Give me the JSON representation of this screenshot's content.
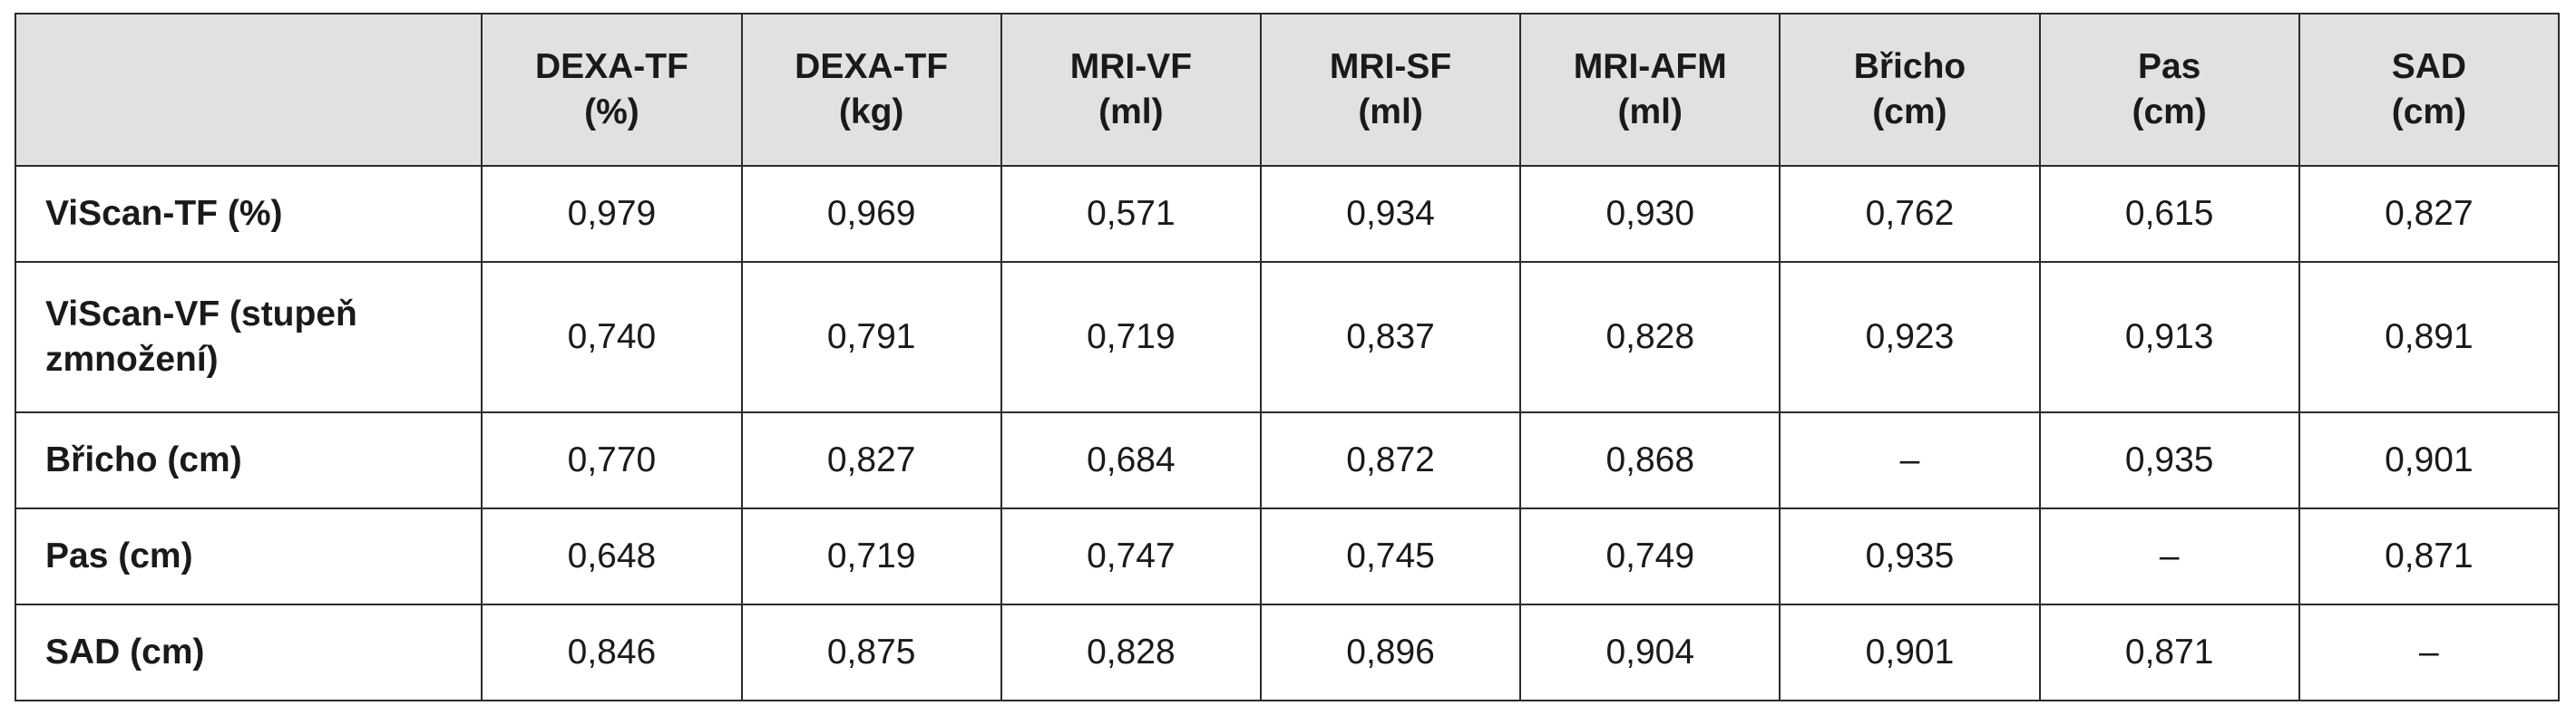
{
  "table": {
    "corner": "",
    "columns": [
      {
        "line1": "DEXA-TF",
        "line2": "(%)"
      },
      {
        "line1": "DEXA-TF",
        "line2": "(kg)"
      },
      {
        "line1": "MRI-VF",
        "line2": "(ml)"
      },
      {
        "line1": "MRI-SF",
        "line2": "(ml)"
      },
      {
        "line1": "MRI-AFM",
        "line2": "(ml)"
      },
      {
        "line1": "Břicho",
        "line2": "(cm)"
      },
      {
        "line1": "Pas",
        "line2": "(cm)"
      },
      {
        "line1": "SAD",
        "line2": "(cm)"
      }
    ],
    "rows": [
      {
        "label": "ViScan-TF (%)",
        "cells": [
          "0,979",
          "0,969",
          "0,571",
          "0,934",
          "0,930",
          "0,762",
          "0,615",
          "0,827"
        ]
      },
      {
        "label": "ViScan-VF (stupeň zmnožení)",
        "cells": [
          "0,740",
          "0,791",
          "0,719",
          "0,837",
          "0,828",
          "0,923",
          "0,913",
          "0,891"
        ]
      },
      {
        "label": "Břicho (cm)",
        "cells": [
          "0,770",
          "0,827",
          "0,684",
          "0,872",
          "0,868",
          "–",
          "0,935",
          "0,901"
        ]
      },
      {
        "label": "Pas (cm)",
        "cells": [
          "0,648",
          "0,719",
          "0,747",
          "0,745",
          "0,749",
          "0,935",
          "–",
          "0,871"
        ]
      },
      {
        "label": "SAD (cm)",
        "cells": [
          "0,846",
          "0,875",
          "0,828",
          "0,896",
          "0,904",
          "0,901",
          "0,871",
          "–"
        ]
      }
    ]
  }
}
